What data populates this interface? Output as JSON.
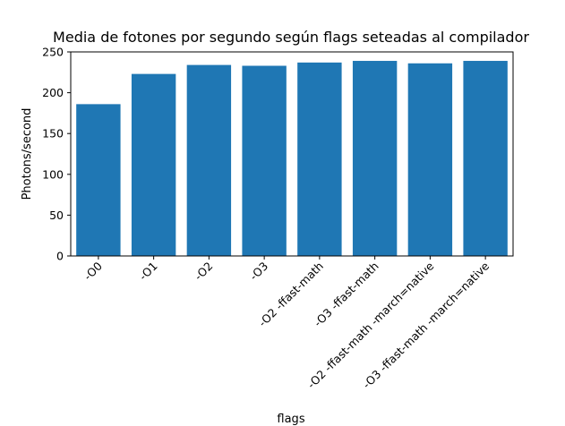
{
  "chart_data": {
    "type": "bar",
    "title": "Media de fotones por segundo según flags seteadas al compilador",
    "xlabel": "flags",
    "ylabel": "Photons/second",
    "categories": [
      "-O0",
      "-O1",
      "-O2",
      "-O3",
      "-O2 -ffast-math",
      "-O3 -ffast-math",
      "-O2 -ffast-math -march=native",
      "-O3 -ffast-math -march=native"
    ],
    "values": [
      186,
      223,
      234,
      233,
      237,
      239,
      236,
      239
    ],
    "ylim": [
      0,
      250
    ],
    "yticks": [
      0,
      50,
      100,
      150,
      200,
      250
    ],
    "bar_color": "#1f77b4",
    "grid": false,
    "legend": false
  }
}
